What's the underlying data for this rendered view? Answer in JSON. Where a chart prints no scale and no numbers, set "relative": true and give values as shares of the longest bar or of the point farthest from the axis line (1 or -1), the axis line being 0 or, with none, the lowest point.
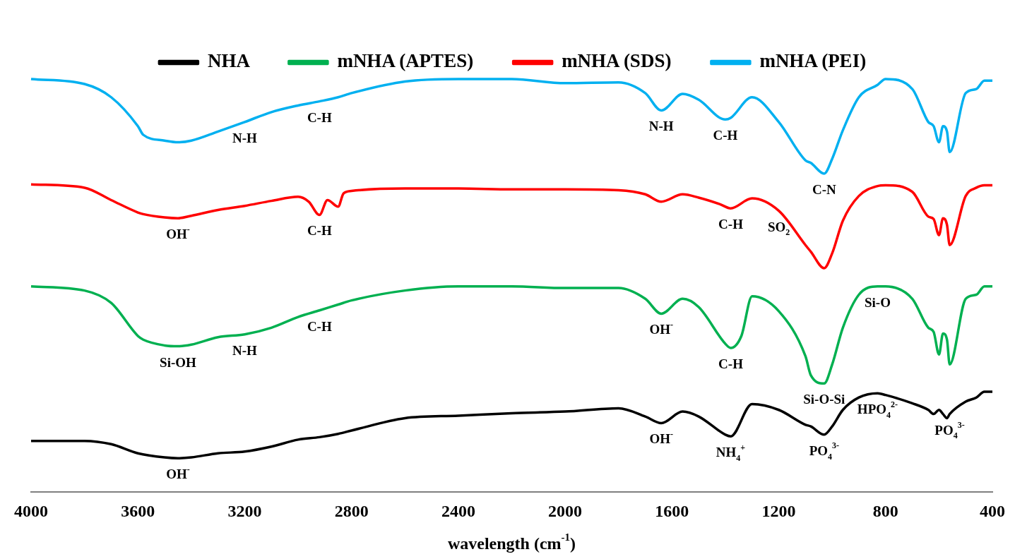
{
  "chart_data": {
    "type": "line",
    "relative": true,
    "xlabel": "wavelength (cm$^{-1}$)",
    "xlim": [
      4000,
      400
    ],
    "xticks": [
      4000,
      3600,
      3200,
      2800,
      2400,
      2000,
      1600,
      1200,
      800,
      400
    ],
    "grid": false,
    "legend": "top",
    "marker": "none",
    "line_style": "solid",
    "series": [
      {
        "name": "NHA",
        "color": "#000000",
        "x": [
          4000,
          3800,
          3700,
          3600,
          3500,
          3450,
          3400,
          3300,
          3200,
          3100,
          3000,
          2920,
          2850,
          2800,
          2600,
          2400,
          2200,
          2000,
          1800,
          1700,
          1640,
          1560,
          1500,
          1400,
          1380,
          1300,
          1200,
          1100,
          1080,
          1030,
          1000,
          960,
          900,
          830,
          800,
          700,
          640,
          620,
          600,
          585,
          570,
          560,
          500,
          460,
          430,
          400
        ],
        "values": [
          0.124,
          0.124,
          0.116,
          0.094,
          0.084,
          0.082,
          0.084,
          0.094,
          0.098,
          0.11,
          0.127,
          0.133,
          0.141,
          0.149,
          0.179,
          0.185,
          0.191,
          0.195,
          0.203,
          0.183,
          0.167,
          0.195,
          0.183,
          0.139,
          0.135,
          0.213,
          0.199,
          0.163,
          0.159,
          0.139,
          0.159,
          0.199,
          0.229,
          0.239,
          0.235,
          0.215,
          0.199,
          0.189,
          0.199,
          0.189,
          0.179,
          0.189,
          0.219,
          0.229,
          0.243,
          0.243
        ]
      },
      {
        "name": "mNHA (APTES)",
        "color": "#00b050",
        "x": [
          4000,
          3800,
          3700,
          3600,
          3580,
          3500,
          3450,
          3400,
          3300,
          3200,
          3100,
          3000,
          2920,
          2850,
          2800,
          2600,
          2400,
          2200,
          2000,
          1800,
          1700,
          1640,
          1560,
          1500,
          1400,
          1380,
          1340,
          1300,
          1200,
          1100,
          1080,
          1030,
          1000,
          960,
          900,
          830,
          800,
          700,
          640,
          620,
          600,
          585,
          570,
          560,
          500,
          460,
          430,
          400
        ],
        "values": [
          0.498,
          0.488,
          0.458,
          0.378,
          0.369,
          0.355,
          0.353,
          0.357,
          0.375,
          0.382,
          0.398,
          0.424,
          0.44,
          0.454,
          0.464,
          0.488,
          0.498,
          0.498,
          0.494,
          0.494,
          0.468,
          0.432,
          0.468,
          0.448,
          0.359,
          0.349,
          0.378,
          0.474,
          0.438,
          0.329,
          0.283,
          0.263,
          0.309,
          0.398,
          0.478,
          0.498,
          0.498,
          0.468,
          0.398,
          0.388,
          0.333,
          0.384,
          0.369,
          0.309,
          0.468,
          0.478,
          0.498,
          0.498
        ]
      },
      {
        "name": "mNHA (SDS)",
        "color": "#ff0000",
        "x": [
          4000,
          3800,
          3700,
          3600,
          3580,
          3500,
          3450,
          3400,
          3300,
          3200,
          3100,
          3000,
          2960,
          2920,
          2890,
          2850,
          2830,
          2800,
          2600,
          2400,
          2200,
          2000,
          1800,
          1700,
          1640,
          1560,
          1500,
          1420,
          1380,
          1300,
          1200,
          1100,
          1080,
          1030,
          1000,
          960,
          900,
          830,
          800,
          700,
          640,
          620,
          600,
          585,
          570,
          560,
          500,
          460,
          430,
          400
        ],
        "values": [
          0.745,
          0.737,
          0.707,
          0.677,
          0.673,
          0.665,
          0.663,
          0.669,
          0.683,
          0.693,
          0.705,
          0.715,
          0.703,
          0.671,
          0.707,
          0.691,
          0.723,
          0.729,
          0.735,
          0.735,
          0.733,
          0.733,
          0.731,
          0.721,
          0.703,
          0.721,
          0.713,
          0.697,
          0.687,
          0.711,
          0.681,
          0.598,
          0.582,
          0.542,
          0.578,
          0.657,
          0.717,
          0.741,
          0.743,
          0.727,
          0.667,
          0.661,
          0.622,
          0.663,
          0.647,
          0.598,
          0.717,
          0.737,
          0.743,
          0.743
        ]
      },
      {
        "name": "mNHA (PEI)",
        "color": "#00b0f0",
        "x": [
          4000,
          3800,
          3700,
          3600,
          3580,
          3500,
          3450,
          3400,
          3300,
          3200,
          3100,
          3000,
          2920,
          2850,
          2800,
          2600,
          2400,
          2200,
          2000,
          1800,
          1700,
          1640,
          1560,
          1500,
          1400,
          1380,
          1300,
          1200,
          1100,
          1080,
          1030,
          1000,
          960,
          900,
          830,
          800,
          700,
          640,
          620,
          600,
          585,
          570,
          560,
          500,
          460,
          430,
          400
        ],
        "values": [
          1.0,
          0.988,
          0.956,
          0.886,
          0.865,
          0.851,
          0.847,
          0.851,
          0.873,
          0.896,
          0.92,
          0.936,
          0.946,
          0.956,
          0.966,
          0.994,
          1.0,
          1.0,
          0.99,
          0.992,
          0.966,
          0.924,
          0.964,
          0.95,
          0.902,
          0.906,
          0.956,
          0.896,
          0.803,
          0.797,
          0.771,
          0.807,
          0.876,
          0.956,
          0.986,
          1.0,
          0.976,
          0.896,
          0.886,
          0.847,
          0.886,
          0.873,
          0.823,
          0.966,
          0.976,
          0.996,
          0.996
        ]
      }
    ],
    "annotations": [
      {
        "text": "N-H",
        "x": 3200,
        "y": 0.896
      },
      {
        "text": "C-H",
        "x": 2920,
        "y": 0.946
      },
      {
        "text": "N-H",
        "x": 1640,
        "y": 0.924
      },
      {
        "text": "C-H",
        "x": 1400,
        "y": 0.902
      },
      {
        "text": "C-N",
        "x": 1030,
        "y": 0.771
      },
      {
        "text": "OH$^{-}$",
        "x": 3450,
        "y": 0.663
      },
      {
        "text": "C-H",
        "x": 2920,
        "y": 0.671
      },
      {
        "text": "C-H",
        "x": 1380,
        "y": 0.687
      },
      {
        "text": "SO$_{2}$",
        "x": 1200,
        "y": 0.681
      },
      {
        "text": "Si-OH",
        "x": 3450,
        "y": 0.353
      },
      {
        "text": "N-H",
        "x": 3200,
        "y": 0.382
      },
      {
        "text": "C-H",
        "x": 2920,
        "y": 0.44
      },
      {
        "text": "OH$^{-}$",
        "x": 1640,
        "y": 0.432
      },
      {
        "text": "C-H",
        "x": 1380,
        "y": 0.349
      },
      {
        "text": "Si-O-Si",
        "x": 1030,
        "y": 0.263
      },
      {
        "text": "Si-O",
        "x": 830,
        "y": 0.498
      },
      {
        "text": "OH$^{-}$",
        "x": 3450,
        "y": 0.082
      },
      {
        "text": "OH$^{-}$",
        "x": 1640,
        "y": 0.167
      },
      {
        "text": "NH$_{4}$$^{+}$",
        "x": 1380,
        "y": 0.135
      },
      {
        "text": "PO$_{4}$$^{3-}$",
        "x": 1030,
        "y": 0.139
      },
      {
        "text": "HPO$_{4}$$^{2-}$",
        "x": 830,
        "y": 0.239
      },
      {
        "text": "PO$_{4}$$^{3-}$",
        "x": 560,
        "y": 0.189
      }
    ]
  }
}
